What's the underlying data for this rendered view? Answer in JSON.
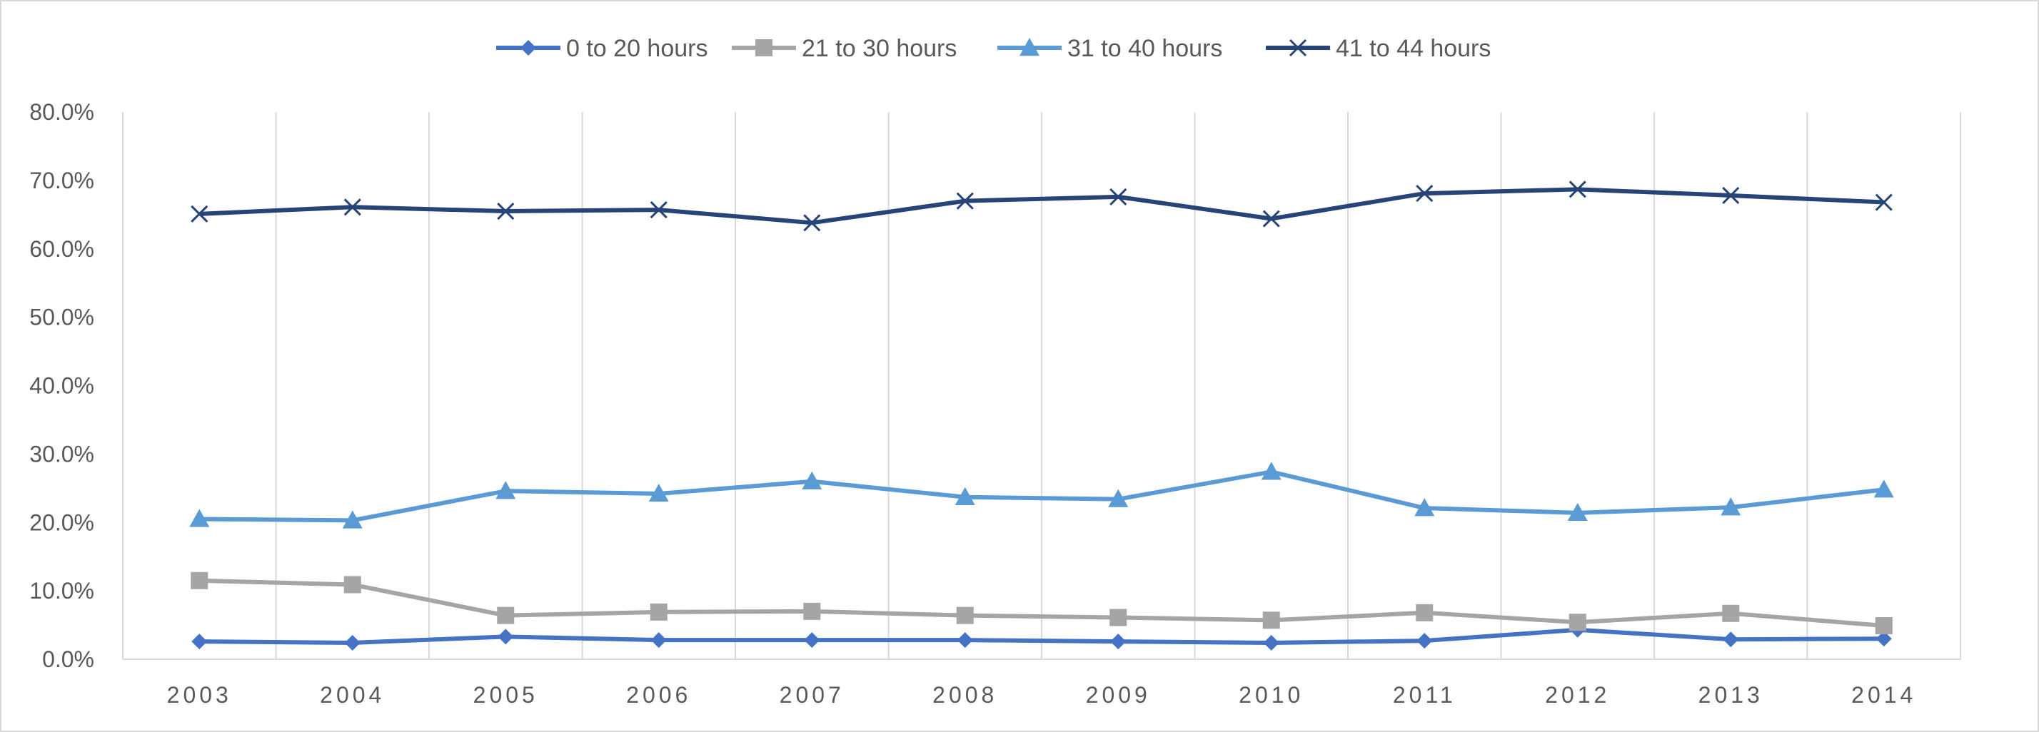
{
  "chart_data": {
    "type": "line",
    "title": "",
    "xlabel": "",
    "ylabel": "",
    "x": [
      "2003",
      "2004",
      "2005",
      "2006",
      "2007",
      "2008",
      "2009",
      "2010",
      "2011",
      "2012",
      "2013",
      "2014"
    ],
    "ylim": [
      0,
      0.8
    ],
    "y_ticks": [
      "0.0%",
      "10.0%",
      "20.0%",
      "30.0%",
      "40.0%",
      "50.0%",
      "60.0%",
      "70.0%",
      "80.0%"
    ],
    "y_tick_values": [
      0,
      0.1,
      0.2,
      0.3,
      0.4,
      0.5,
      0.6,
      0.7,
      0.8
    ],
    "grid": "vertical",
    "legend_position": "top",
    "series": [
      {
        "name": "0 to 20 hours",
        "color": "#4472c4",
        "marker": "diamond",
        "values": [
          0.026,
          0.024,
          0.033,
          0.028,
          0.028,
          0.028,
          0.026,
          0.024,
          0.027,
          0.043,
          0.029,
          0.03
        ]
      },
      {
        "name": "21 to 30 hours",
        "color": "#a5a5a5",
        "marker": "square",
        "values": [
          0.115,
          0.109,
          0.064,
          0.069,
          0.07,
          0.064,
          0.061,
          0.057,
          0.068,
          0.054,
          0.067,
          0.049
        ]
      },
      {
        "name": "31 to 40 hours",
        "color": "#5b9bd5",
        "marker": "triangle",
        "values": [
          0.205,
          0.203,
          0.246,
          0.242,
          0.26,
          0.237,
          0.234,
          0.274,
          0.221,
          0.214,
          0.222,
          0.248
        ]
      },
      {
        "name": "41 to 44 hours",
        "color": "#264478",
        "marker": "x",
        "values": [
          0.651,
          0.661,
          0.655,
          0.657,
          0.638,
          0.67,
          0.676,
          0.644,
          0.681,
          0.687,
          0.678,
          0.668
        ]
      }
    ]
  }
}
